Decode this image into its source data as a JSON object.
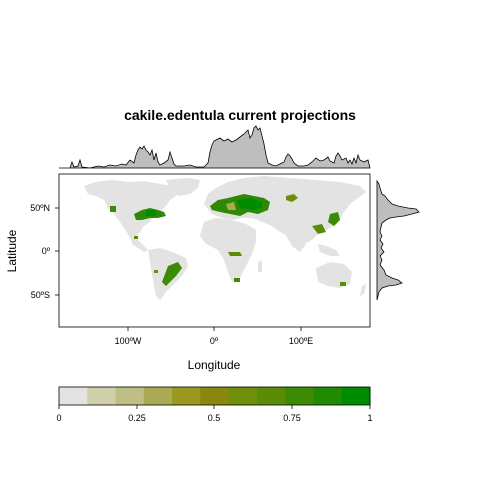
{
  "title": "cakile.edentula current projections",
  "xlabel": "Longitude",
  "ylabel": "Latitude",
  "x_ticks": [
    "100ºW",
    "0º",
    "100ºE"
  ],
  "y_ticks": [
    "50ºN",
    "0º",
    "50ºS"
  ],
  "colorbar": {
    "ticks": [
      "0",
      "0.25",
      "0.5",
      "0.75",
      "1"
    ],
    "range": [
      0,
      1
    ],
    "colors": [
      "#e3e3e3",
      "#cfcfaa",
      "#bdbf85",
      "#aaaa55",
      "#999922",
      "#888811",
      "#6f8f0a",
      "#5a8c08",
      "#3d8a05",
      "#208a03",
      "#008c00"
    ]
  },
  "colors": {
    "land": "#e3e3e3",
    "marginal_fill": "#bebebe",
    "suitable_high": "#008c00",
    "suitable_mid": "#4f8a05",
    "suitable_low": "#9aa030"
  },
  "chart_data": {
    "type": "heatmap",
    "title": "cakile.edentula current projections",
    "xlabel": "Longitude",
    "ylabel": "Latitude",
    "xlim": [
      -180,
      180
    ],
    "ylim": [
      -90,
      90
    ],
    "x_tick_values": [
      -100,
      0,
      100
    ],
    "y_tick_values": [
      50,
      0,
      -50
    ],
    "value_range": [
      0,
      1
    ]
  }
}
